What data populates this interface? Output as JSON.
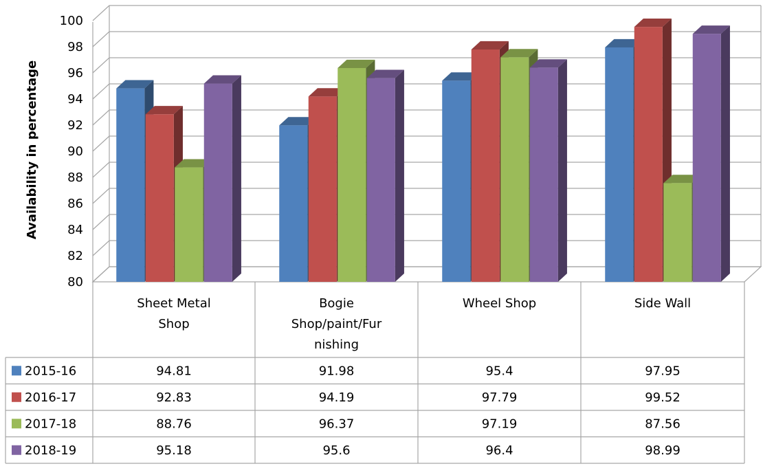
{
  "chart_data": {
    "type": "bar",
    "variant": "3d-clustered-column-with-data-table",
    "title": "",
    "xlabel": "",
    "ylabel": "Availability  in percentage",
    "ylim": [
      80,
      100
    ],
    "y_ticks": [
      80,
      82,
      84,
      86,
      88,
      90,
      92,
      94,
      96,
      98,
      100
    ],
    "grid": true,
    "legend": "data-table-left",
    "categories": [
      "Sheet Metal Shop",
      "Bogie Shop/paint/Furnishing",
      "Wheel Shop",
      "Side Wall"
    ],
    "category_label_lines": [
      [
        "Sheet Metal",
        "Shop"
      ],
      [
        "Bogie",
        "Shop/paint/Fur",
        "nishing"
      ],
      [
        "Wheel Shop"
      ],
      [
        "Side Wall"
      ]
    ],
    "series": [
      {
        "name": "2015-16",
        "color": "#4F81BD",
        "values": [
          94.81,
          91.98,
          95.4,
          97.95
        ],
        "labels": [
          "94.81",
          "91.98",
          "95.4",
          "97.95"
        ]
      },
      {
        "name": "2016-17",
        "color": "#C0504D",
        "values": [
          92.83,
          94.19,
          97.79,
          99.52
        ],
        "labels": [
          "92.83",
          "94.19",
          "97.79",
          "99.52"
        ]
      },
      {
        "name": "2017-18",
        "color": "#9BBB59",
        "values": [
          88.76,
          96.37,
          97.19,
          87.56
        ],
        "labels": [
          "88.76",
          "96.37",
          "97.19",
          "87.56"
        ]
      },
      {
        "name": "2018-19",
        "color": "#8064A2",
        "values": [
          95.18,
          95.6,
          96.4,
          98.99
        ],
        "labels": [
          "95.18",
          "95.6",
          "96.4",
          "98.99"
        ]
      }
    ]
  }
}
